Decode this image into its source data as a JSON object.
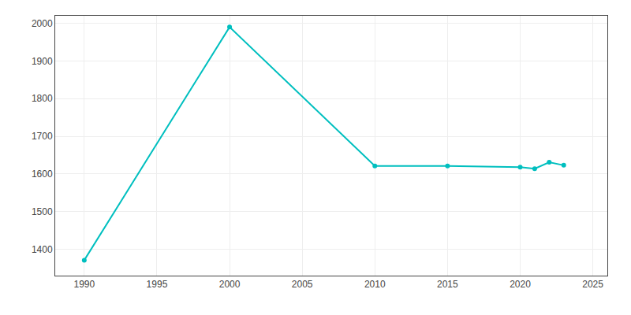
{
  "chart_data": {
    "type": "line",
    "x": [
      1990,
      2000,
      2010,
      2015,
      2020,
      2021,
      2022,
      2023
    ],
    "values": [
      1371,
      1990,
      1621,
      1621,
      1618,
      1614,
      1631,
      1623
    ],
    "color": "#00BFBF",
    "marker": "circle",
    "xlim": [
      1988,
      2026
    ],
    "ylim": [
      1330,
      2020
    ],
    "xticks": [
      1990,
      1995,
      2000,
      2005,
      2010,
      2015,
      2020,
      2025
    ],
    "yticks": [
      1400,
      1500,
      1600,
      1700,
      1800,
      1900,
      2000
    ],
    "grid": true
  }
}
